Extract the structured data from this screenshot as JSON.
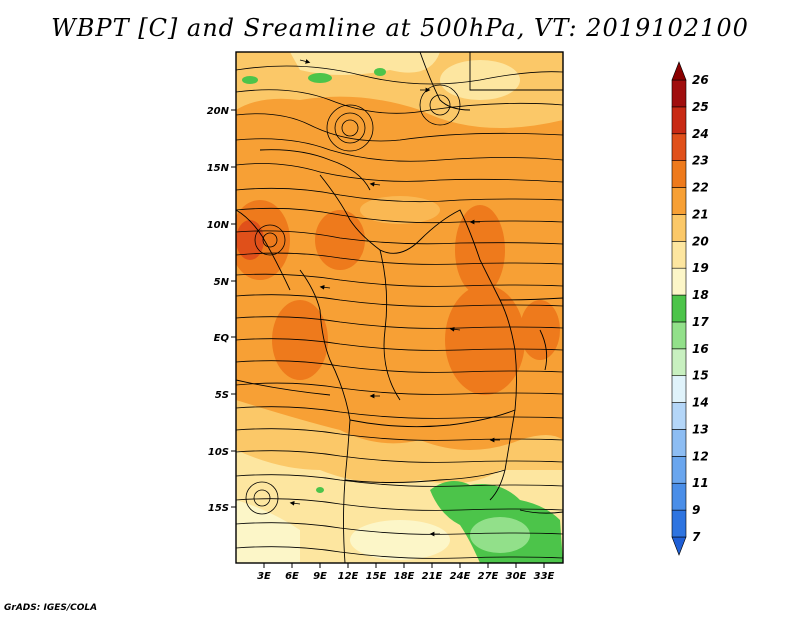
{
  "title": "WBPT [C] and Sreamline at 500hPa, VT: 2019102100",
  "footer": "GrADS: IGES/COLA",
  "map": {
    "variable": "WBPT",
    "units": "C",
    "level": "500hPa",
    "valid_time": "2019102100",
    "lat_labels": [
      "20N",
      "15N",
      "10N",
      "5N",
      "EQ",
      "5S",
      "10S",
      "15S"
    ],
    "lon_labels": [
      "3E",
      "6E",
      "9E",
      "12E",
      "15E",
      "18E",
      "21E",
      "24E",
      "27E",
      "30E",
      "33E"
    ]
  },
  "colorbar": {
    "levels": [
      "7",
      "9",
      "11",
      "12",
      "13",
      "14",
      "15",
      "16",
      "17",
      "18",
      "19",
      "20",
      "21",
      "22",
      "23",
      "24",
      "25",
      "26"
    ],
    "colors": [
      "#1f5fd6",
      "#2e74e0",
      "#4a8ee8",
      "#6aa6ee",
      "#8dbdf3",
      "#b4d6f8",
      "#e0f3fb",
      "#c8f0c0",
      "#92e08a",
      "#4cc44a",
      "#fcf6c8",
      "#fde6a0",
      "#fbc868",
      "#f7a035",
      "#ee7a1c",
      "#e0501a",
      "#c82a14",
      "#a00e0e",
      "#8a0000"
    ]
  }
}
